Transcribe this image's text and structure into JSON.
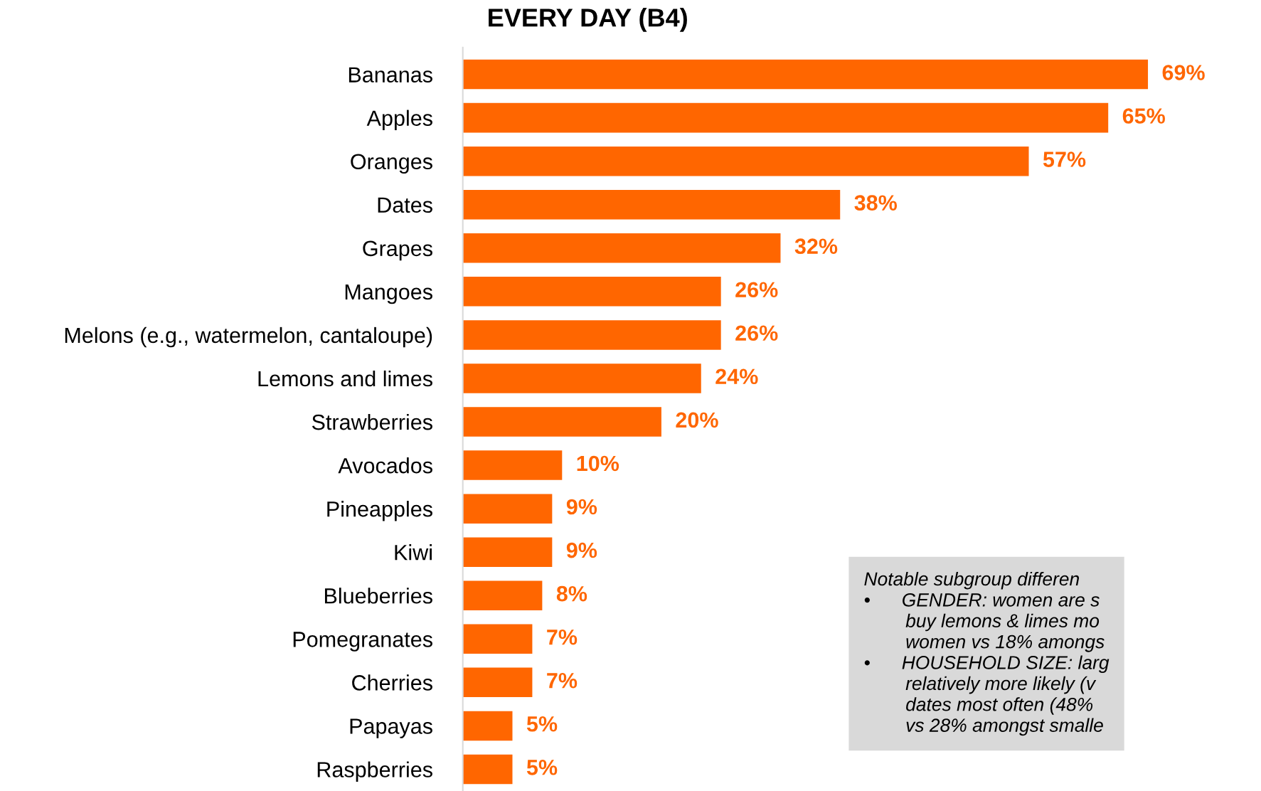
{
  "chart_data": {
    "type": "bar",
    "orientation": "horizontal",
    "title": "EVERY DAY (B4)",
    "categories": [
      "Bananas",
      "Apples",
      "Oranges",
      "Dates",
      "Grapes",
      "Mangoes",
      "Melons (e.g., watermelon, cantaloupe)",
      "Lemons and limes",
      "Strawberries",
      "Avocados",
      "Pineapples",
      "Kiwi",
      "Blueberries",
      "Pomegranates",
      "Cherries",
      "Papayas",
      "Raspberries"
    ],
    "values": [
      69,
      65,
      57,
      38,
      32,
      26,
      26,
      24,
      20,
      10,
      9,
      9,
      8,
      7,
      7,
      5,
      5
    ],
    "value_labels": [
      "69%",
      "65%",
      "57%",
      "38%",
      "32%",
      "26%",
      "26%",
      "24%",
      "20%",
      "10%",
      "9%",
      "9%",
      "8%",
      "7%",
      "7%",
      "5%",
      "5%"
    ],
    "color": "#ff6600",
    "grid": false,
    "legend": false,
    "annotations": [
      "Notable subgroup differen\n•      GENDER: women are s\n        buy lemons & limes mo\n        women vs 18% amongs\n•      HOUSEHOLD SIZE: larg\n        relatively more likely (v\n        dates most often (48%\n        vs 28% amongst smalle"
    ]
  }
}
